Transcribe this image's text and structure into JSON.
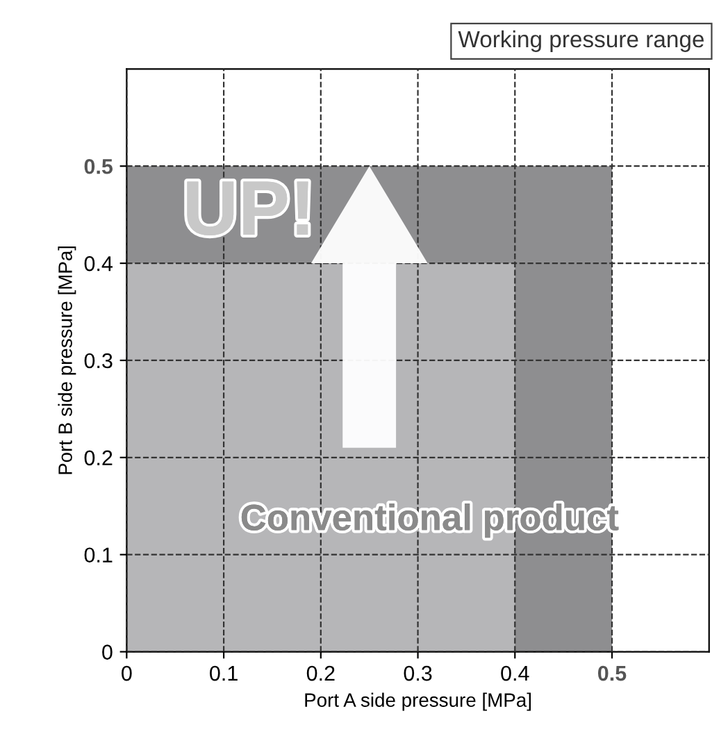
{
  "chart_data": {
    "type": "area",
    "title": "Working pressure range",
    "xlabel": "Port A side pressure [MPa]",
    "ylabel": "Port B side pressure [MPa]",
    "series": [
      {
        "x": [
          0,
          0.5
        ],
        "values": [
          0.5,
          0.5
        ],
        "color": "#8e8e90"
      },
      {
        "x": [
          0,
          0.4
        ],
        "values": [
          0.4,
          0.4
        ],
        "color": "#b6b6b8"
      }
    ],
    "xlim": [
      0,
      0.6
    ],
    "ylim": [
      0,
      0.6
    ],
    "xticks": [
      0,
      0.1,
      0.2,
      0.3,
      0.4,
      0.5
    ],
    "yticks": [
      0,
      0.1,
      0.2,
      0.3,
      0.4,
      0.5
    ],
    "grid": true,
    "line_style": "dashed",
    "annotations": [
      "UP!",
      "Conventional product"
    ]
  }
}
